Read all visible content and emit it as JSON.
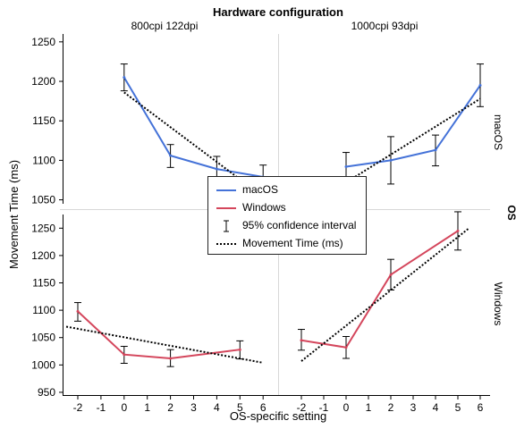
{
  "chart_data": {
    "type": "line",
    "title": "Hardware configuration",
    "xlabel": "OS-specific setting",
    "ylabel": "Movement Time (ms)",
    "row_facet_label": "OS",
    "x_ticks": [
      "-2",
      "-1",
      "0",
      "1",
      "2",
      "3",
      "4",
      "5",
      "6"
    ],
    "colors": {
      "macOS": "#4472d8",
      "Windows": "#d4465c",
      "trend": "#000000",
      "error": "#000000"
    },
    "legend": {
      "position": "center",
      "entries": [
        {
          "label": "macOS",
          "kind": "line",
          "color": "#4472d8"
        },
        {
          "label": "Windows",
          "kind": "line",
          "color": "#d4465c"
        },
        {
          "label": "95% confidence interval",
          "kind": "errorbar",
          "color": "#000000"
        },
        {
          "label": "Movement Time (ms)",
          "kind": "dotted",
          "color": "#000000"
        }
      ]
    },
    "panels": [
      {
        "column": "800cpi 122dpi",
        "row": "macOS",
        "series": "macOS",
        "xlim": [
          -2.5,
          6.5
        ],
        "ylim": [
          1045,
          1260
        ],
        "y_ticks": [
          1050,
          1100,
          1150,
          1200,
          1250
        ],
        "points": [
          {
            "x": 0,
            "y": 1205,
            "lo": 1188,
            "hi": 1222
          },
          {
            "x": 2,
            "y": 1106,
            "lo": 1091,
            "hi": 1120
          },
          {
            "x": 4,
            "y": 1089,
            "lo": 1071,
            "hi": 1105
          },
          {
            "x": 6,
            "y": 1079,
            "lo": 1063,
            "hi": 1094
          }
        ],
        "trend": {
          "x": [
            0,
            6
          ],
          "y": [
            1186,
            1054
          ]
        }
      },
      {
        "column": "1000cpi 93dpi",
        "row": "macOS",
        "series": "macOS",
        "xlim": [
          -2.5,
          6.5
        ],
        "ylim": [
          1045,
          1260
        ],
        "y_ticks": [
          1050,
          1100,
          1150,
          1200,
          1250
        ],
        "points": [
          {
            "x": 0,
            "y": 1092,
            "lo": 1075,
            "hi": 1110
          },
          {
            "x": 2,
            "y": 1100,
            "lo": 1070,
            "hi": 1130
          },
          {
            "x": 4,
            "y": 1113,
            "lo": 1093,
            "hi": 1132
          },
          {
            "x": 6,
            "y": 1195,
            "lo": 1168,
            "hi": 1222
          }
        ],
        "trend": {
          "x": [
            0,
            6
          ],
          "y": [
            1072,
            1178
          ]
        }
      },
      {
        "column": "800cpi 122dpi",
        "row": "Windows",
        "series": "Windows",
        "xlim": [
          -2.5,
          6.5
        ],
        "ylim": [
          945,
          1275
        ],
        "y_ticks": [
          950,
          1000,
          1050,
          1100,
          1150,
          1200,
          1250
        ],
        "points": [
          {
            "x": -2,
            "y": 1098,
            "lo": 1080,
            "hi": 1114
          },
          {
            "x": 0,
            "y": 1019,
            "lo": 1003,
            "hi": 1034
          },
          {
            "x": 2,
            "y": 1012,
            "lo": 997,
            "hi": 1028
          },
          {
            "x": 5,
            "y": 1028,
            "lo": 1011,
            "hi": 1044
          }
        ],
        "trend": {
          "x": [
            -2.5,
            6
          ],
          "y": [
            1070,
            1004
          ]
        }
      },
      {
        "column": "1000cpi 93dpi",
        "row": "Windows",
        "series": "Windows",
        "xlim": [
          -2.5,
          6.5
        ],
        "ylim": [
          945,
          1275
        ],
        "y_ticks": [
          950,
          1000,
          1050,
          1100,
          1150,
          1200,
          1250
        ],
        "points": [
          {
            "x": -2,
            "y": 1045,
            "lo": 1027,
            "hi": 1065
          },
          {
            "x": 0,
            "y": 1032,
            "lo": 1012,
            "hi": 1052
          },
          {
            "x": 2,
            "y": 1165,
            "lo": 1137,
            "hi": 1193
          },
          {
            "x": 5,
            "y": 1245,
            "lo": 1210,
            "hi": 1280
          }
        ],
        "trend": {
          "x": [
            -2,
            5.5
          ],
          "y": [
            1007,
            1250
          ]
        }
      }
    ]
  }
}
